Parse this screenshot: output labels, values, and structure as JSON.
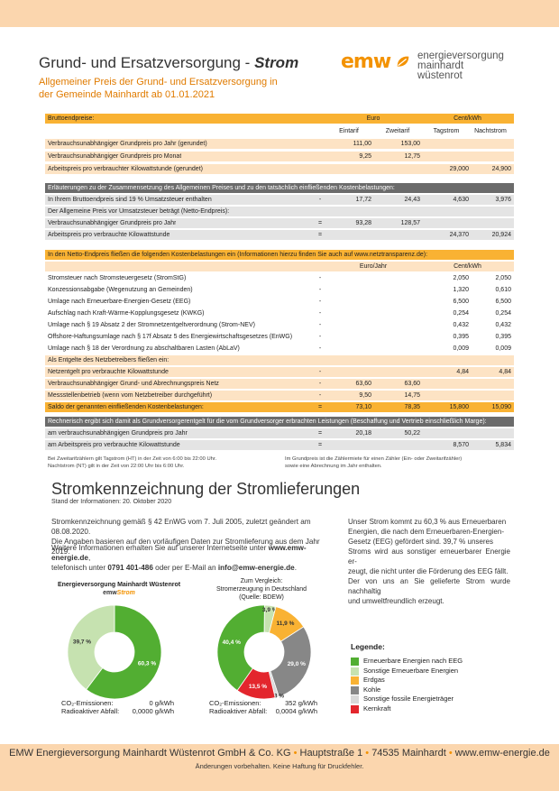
{
  "header": {
    "title_main": "Grund- und Ersatzversorgung - ",
    "title_bold": "Strom",
    "subtitle_line1": "Allgemeiner Preis der Grund- und Ersatzversorgung in",
    "subtitle_line2": "der Gemeinde Mainhardt ab 01.01.2021",
    "logo_word": "emw",
    "logo_line1": "energieversorgung",
    "logo_line2": "mainhardt",
    "logo_line3": "wüstenrot"
  },
  "table1": {
    "head_label": "Bruttoendpreise:",
    "head_euro": "Euro",
    "head_cent": "Cent/kWh",
    "col_eintarif": "Eintarif",
    "col_zweitarif": "Zweitarif",
    "col_tagstrom": "Tagstrom",
    "col_nachtstrom": "Nachtstrom",
    "rows": [
      {
        "label": "Verbrauchsunabhängiger Grundpreis pro Jahr (gerundet)",
        "eq": "",
        "v1": "111,00",
        "v2": "153,00",
        "v3": "",
        "v4": ""
      },
      {
        "label": "Verbrauchsunabhängiger Grundpreis pro Monat",
        "eq": "",
        "v1": "9,25",
        "v2": "12,75",
        "v3": "",
        "v4": ""
      },
      {
        "label": "Arbeitspreis pro verbrauchter Kilowattstunde (gerundet)",
        "eq": "",
        "v1": "",
        "v2": "",
        "v3": "29,000",
        "v4": "24,900"
      }
    ]
  },
  "table2": {
    "head": "Erläuterungen zu der Zusammensetzung des Allgemeinen Preises und zu den tatsächlich einfließenden Kostenbelastungen:",
    "row1": {
      "label": "In Ihrem Bruttoendpreis sind 19 % Umsatzsteuer enthalten",
      "eq": "-",
      "v1": "17,72",
      "v2": "24,43",
      "v3": "4,630",
      "v4": "3,976"
    },
    "note": "Der Allgemeine Preis vor Umsatzsteuer beträgt (Netto-Endpreis):",
    "row2": {
      "label": "Verbrauchsunabhängiger Grundpreis pro Jahr",
      "eq": "=",
      "v1": "93,28",
      "v2": "128,57",
      "v3": "",
      "v4": ""
    },
    "row3": {
      "label": "Arbeitspreis pro verbrauchte Kilowattstunde",
      "eq": "=",
      "v1": "",
      "v2": "",
      "v3": "24,370",
      "v4": "20,924"
    }
  },
  "table3": {
    "head": "In den Netto-Endpreis fließen die folgenden Kostenbelastungen ein (Informationen hierzu finden Sie auch auf www.netztransparenz.de):",
    "head_euro": "Euro/Jahr",
    "head_cent": "Cent/kWh",
    "rows": [
      {
        "label": "Stromsteuer nach Stromsteuergesetz (StromStG)",
        "eq": "-",
        "v1": "",
        "v2": "",
        "v3": "2,050",
        "v4": "2,050"
      },
      {
        "label": "Konzessionsabgabe (Wegenutzung an Gemeinden)",
        "eq": "-",
        "v1": "",
        "v2": "",
        "v3": "1,320",
        "v4": "0,610"
      },
      {
        "label": "Umlage nach Erneuerbare-Energien-Gesetz (EEG)",
        "eq": "-",
        "v1": "",
        "v2": "",
        "v3": "6,500",
        "v4": "6,500"
      },
      {
        "label": "Aufschlag nach Kraft-Wärme-Kopplungsgesetz (KWKG)",
        "eq": "-",
        "v1": "",
        "v2": "",
        "v3": "0,254",
        "v4": "0,254"
      },
      {
        "label": "Umlage nach § 19 Absatz 2 der Stromnetzentgeltverordnung (Strom-NEV)",
        "eq": "-",
        "v1": "",
        "v2": "",
        "v3": "0,432",
        "v4": "0,432"
      },
      {
        "label": "Offshore-Haftungsumlage nach § 17f Absatz 5 des Energiewirtschaftsgesetzes (EnWG)",
        "eq": "-",
        "v1": "",
        "v2": "",
        "v3": "0,395",
        "v4": "0,395"
      },
      {
        "label": "Umlage nach § 18 der Verordnung zu abschaltbaren Lasten (AbLaV)",
        "eq": "-",
        "v1": "",
        "v2": "",
        "v3": "0,009",
        "v4": "0,009"
      }
    ],
    "netz_head": "Als Entgelte des Netzbetreibers fließen ein:",
    "netz_rows": [
      {
        "label": "Netzentgelt pro verbrauchte Kilowattstunde",
        "eq": "-",
        "v1": "",
        "v2": "",
        "v3": "4,84",
        "v4": "4,84"
      },
      {
        "label": "Verbrauchsunabhängiger Grund- und Abrechnungspreis Netz",
        "eq": "-",
        "v1": "63,60",
        "v2": "63,60",
        "v3": "",
        "v4": ""
      },
      {
        "label": "Messstellenbetrieb (wenn vom Netzbetreiber durchgeführt)",
        "eq": "-",
        "v1": "9,50",
        "v2": "14,75",
        "v3": "",
        "v4": ""
      }
    ],
    "saldo": {
      "label": "Saldo der genannten einfließenden Kostenbelastungen:",
      "eq": "=",
      "v1": "73,10",
      "v2": "78,35",
      "v3": "15,800",
      "v4": "15,090"
    }
  },
  "table4": {
    "head": "Rechnerisch ergibt sich damit als Grundversorgerentgelt für die vom Grundversorger erbrachten Leistungen (Beschaffung und Vertrieb einschließlich Marge):",
    "row1": {
      "label": "am verbrauchsunabhängigen Grundpreis pro Jahr",
      "eq": "=",
      "v1": "20,18",
      "v2": "50,22",
      "v3": "",
      "v4": ""
    },
    "row2": {
      "label": "am Arbeitspreis pro verbrauchte Kilowattstunde",
      "eq": "=",
      "v1": "",
      "v2": "",
      "v3": "8,570",
      "v4": "5,834"
    }
  },
  "notes": {
    "left1": "Bei Zweitarifzählern gilt Tagstrom (HT) in der Zeit von 6:00 bis 22:00 Uhr.",
    "left2": "Nachtstrom (NT) gilt in der Zeit von 22:00 Uhr bis 6:00 Uhr.",
    "right1": "Im Grundpreis ist die Zählermiete für einen Zähler (Ein- oder Zweitarifzähler)",
    "right2": "sowie eine Abrechnung im Jahr enthalten."
  },
  "kennzeichnung": {
    "title": "Stromkennzeichnung der Stromlieferungen",
    "stand": "Stand der Informationen: 20. Oktober 2020",
    "p1_l1": "Stromkennzeichnung gemäß § 42 EnWG vom 7. Juli 2005, zuletzt geändert am 08.08.2020.",
    "p1_l2": "Die Angaben basieren auf den vorläufigen Daten zur Stromlieferung aus dem Jahr 2019.",
    "p2_l1_a": "Weitere Informationen erhalten Sie auf unserer Internetseite unter ",
    "p2_l1_b": "www.emw-energie.de",
    "p2_l1_c": ",",
    "p2_l2_a": "telefonisch unter ",
    "p2_l2_b": "0791 401-486",
    "p2_l2_c": " oder per E-Mail an ",
    "p2_l2_d": "info@emw-energie.de",
    "p2_l2_e": ".",
    "right_l1": "Unser Strom kommt zu 60,3 % aus Erneuerbaren",
    "right_l2": "Energien, die nach dem Erneuerbaren-Energien-",
    "right_l3": "Gesetz (EEG) gefördert sind. 39,7 % unseres",
    "right_l4": "Stroms wird aus sonstiger erneuerbarer Energie er-",
    "right_l5": "zeugt, die nicht unter die Förderung des EEG fällt.",
    "right_l6": "Der von uns an Sie gelieferte Strom wurde nachhaltig",
    "right_l7": "und umweltfreundlich erzeugt."
  },
  "chart_data": [
    {
      "type": "pie",
      "title": "Energieversorgung Mainhardt Wüstenrot",
      "subtitle_a": "emw",
      "subtitle_b": "Strom",
      "categories": [
        "Erneuerbare Energien nach EEG",
        "Sonstige Erneuerbare Energien"
      ],
      "values": [
        60.3,
        39.7
      ],
      "labels": [
        "60,3 %",
        "39,7 %"
      ],
      "colors": [
        "#52ae32",
        "#c6e2b0"
      ],
      "co2_label": "CO₂-Emissionen:",
      "co2_value": "0 g/kWh",
      "rad_label": "Radioaktiver Abfall:",
      "rad_value": "0,0000 g/kWh"
    },
    {
      "type": "pie",
      "title_l1": "Zum Vergleich:",
      "title_l2": "Stromerzeugung in Deutschland",
      "title_l3": "(Quelle: BDEW)",
      "categories": [
        "Erneuerbare Energien nach EEG",
        "Sonstige Erneuerbare Energien",
        "Erdgas",
        "Kohle",
        "Sonstige fossile Energieträger",
        "Kernkraft"
      ],
      "values": [
        40.4,
        3.9,
        11.9,
        29.0,
        1.3,
        13.5
      ],
      "labels": [
        "40,4 %",
        "3,9 %",
        "11,9 %",
        "29,0 %",
        "1,3 %",
        "13,5 %"
      ],
      "colors": [
        "#52ae32",
        "#c6e2b0",
        "#f9b233",
        "#878787",
        "#d9d9d9",
        "#e3262d"
      ],
      "co2_label": "CO₂-Emissionen:",
      "co2_value": "352 g/kWh",
      "rad_label": "Radioaktiver Abfall:",
      "rad_value": "0,0004 g/kWh"
    }
  ],
  "legend": {
    "title": "Legende:",
    "items": [
      {
        "label": "Erneuerbare Energien nach EEG",
        "color": "#52ae32"
      },
      {
        "label": "Sonstige Erneuerbare Energien",
        "color": "#c6e2b0"
      },
      {
        "label": "Erdgas",
        "color": "#f9b233"
      },
      {
        "label": "Kohle",
        "color": "#878787"
      },
      {
        "label": "Sonstige fossile Energieträger",
        "color": "#d9d9d9"
      },
      {
        "label": "Kernkraft",
        "color": "#e3262d"
      }
    ]
  },
  "footer": {
    "company": "EMW Energieversorgung Mainhardt Wüstenrot GmbH & Co. KG",
    "street": "Hauptstraße 1",
    "city": "74535 Mainhardt",
    "web": "www.emw-energie.de",
    "sep": "•",
    "disclaimer": "Änderungen vorbehalten. Keine Haftung für Druckfehler."
  }
}
